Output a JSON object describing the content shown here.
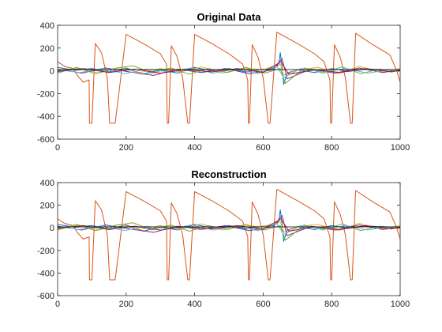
{
  "chart_data": [
    {
      "type": "line",
      "title": "Original Data",
      "xlabel": "",
      "ylabel": "",
      "xlim": [
        0,
        1000
      ],
      "ylim": [
        -600,
        400
      ],
      "xticks": [
        0,
        200,
        400,
        600,
        800,
        1000
      ],
      "yticks": [
        400,
        200,
        0,
        -200,
        -400,
        -600
      ],
      "grid": false,
      "legend": "none",
      "series": [
        {
          "color": "#D95319",
          "x": [
            0,
            20,
            45,
            60,
            75,
            92,
            93,
            100,
            110,
            128,
            145,
            152,
            168,
            200,
            250,
            300,
            318,
            320,
            324,
            332,
            348,
            365,
            380,
            385,
            400,
            450,
            500,
            540,
            555,
            557,
            560,
            568,
            585,
            600,
            615,
            620,
            640,
            700,
            750,
            778,
            795,
            797,
            800,
            808,
            825,
            840,
            855,
            860,
            870,
            920,
            970,
            990,
            1000
          ],
          "y": [
            80,
            40,
            20,
            -50,
            -100,
            -80,
            -460,
            -460,
            240,
            160,
            -60,
            -460,
            -460,
            320,
            240,
            150,
            60,
            -460,
            -460,
            220,
            130,
            -60,
            -460,
            -460,
            320,
            240,
            150,
            60,
            -80,
            -460,
            -460,
            230,
            120,
            -60,
            -460,
            -460,
            340,
            240,
            150,
            80,
            -80,
            -460,
            -460,
            230,
            120,
            -60,
            -460,
            -460,
            330,
            230,
            140,
            0,
            -100
          ]
        },
        {
          "color": "#0072BD",
          "x": [
            0,
            50,
            100,
            150,
            200,
            250,
            300,
            350,
            400,
            450,
            500,
            550,
            600,
            630,
            645,
            650,
            655,
            660,
            670,
            700,
            750,
            800,
            850,
            900,
            950,
            1000
          ],
          "y": [
            30,
            5,
            20,
            -10,
            25,
            -30,
            10,
            -20,
            30,
            0,
            20,
            -10,
            15,
            20,
            50,
            160,
            40,
            -120,
            -20,
            10,
            -15,
            20,
            -5,
            15,
            10,
            5
          ]
        },
        {
          "color": "#EDB120",
          "x": [
            0,
            60,
            120,
            180,
            240,
            300,
            360,
            420,
            480,
            540,
            600,
            650,
            660,
            700,
            760,
            820,
            880,
            940,
            1000
          ],
          "y": [
            -10,
            25,
            -20,
            30,
            -15,
            20,
            -10,
            35,
            -20,
            20,
            10,
            60,
            -40,
            10,
            30,
            -25,
            40,
            -10,
            20
          ]
        },
        {
          "color": "#7E2F8E",
          "x": [
            0,
            70,
            140,
            210,
            280,
            350,
            420,
            490,
            560,
            630,
            655,
            670,
            740,
            810,
            880,
            950,
            1000
          ],
          "y": [
            15,
            -20,
            25,
            -10,
            -40,
            15,
            -15,
            20,
            -25,
            10,
            110,
            -70,
            15,
            -20,
            25,
            -15,
            10
          ]
        },
        {
          "color": "#77AC30",
          "x": [
            0,
            55,
            110,
            165,
            220,
            275,
            330,
            385,
            440,
            495,
            550,
            605,
            650,
            665,
            720,
            775,
            830,
            885,
            940,
            1000
          ],
          "y": [
            -20,
            30,
            -25,
            20,
            45,
            -20,
            25,
            -30,
            20,
            -15,
            30,
            -20,
            20,
            -110,
            25,
            -20,
            35,
            -25,
            15,
            -5
          ]
        },
        {
          "color": "#4DBEEE",
          "x": [
            0,
            65,
            130,
            195,
            260,
            325,
            390,
            455,
            520,
            585,
            640,
            660,
            710,
            775,
            840,
            905,
            970,
            1000
          ],
          "y": [
            10,
            -15,
            20,
            -25,
            15,
            -10,
            25,
            -20,
            15,
            -25,
            40,
            -60,
            20,
            -10,
            20,
            -20,
            10,
            0
          ]
        },
        {
          "color": "#A2142F",
          "x": [
            0,
            75,
            150,
            225,
            300,
            375,
            450,
            525,
            600,
            652,
            675,
            750,
            825,
            900,
            975,
            1000
          ],
          "y": [
            -5,
            20,
            -15,
            15,
            -20,
            10,
            -10,
            20,
            -15,
            80,
            -30,
            10,
            -15,
            20,
            -10,
            5
          ]
        }
      ]
    },
    {
      "type": "line",
      "title": "Reconstruction",
      "xlabel": "",
      "ylabel": "",
      "xlim": [
        0,
        1000
      ],
      "ylim": [
        -600,
        400
      ],
      "xticks": [
        0,
        200,
        400,
        600,
        800,
        1000
      ],
      "yticks": [
        400,
        200,
        0,
        -200,
        -400,
        -600
      ],
      "grid": false,
      "legend": "none",
      "series": [
        {
          "color": "#D95319",
          "x": [
            0,
            20,
            45,
            60,
            75,
            92,
            93,
            100,
            110,
            128,
            145,
            152,
            168,
            200,
            250,
            300,
            318,
            320,
            324,
            332,
            348,
            365,
            380,
            385,
            400,
            450,
            500,
            540,
            555,
            557,
            560,
            568,
            585,
            600,
            615,
            620,
            640,
            700,
            750,
            778,
            795,
            797,
            800,
            808,
            825,
            840,
            855,
            860,
            870,
            920,
            970,
            990,
            1000
          ],
          "y": [
            80,
            40,
            20,
            -50,
            -100,
            -80,
            -460,
            -460,
            240,
            160,
            -60,
            -460,
            -460,
            320,
            240,
            150,
            60,
            -460,
            -460,
            220,
            130,
            -60,
            -460,
            -460,
            320,
            240,
            150,
            60,
            -80,
            -460,
            -460,
            230,
            120,
            -60,
            -460,
            -460,
            340,
            240,
            150,
            80,
            -80,
            -460,
            -460,
            230,
            120,
            -60,
            -460,
            -460,
            330,
            230,
            140,
            0,
            -100
          ]
        },
        {
          "color": "#0072BD",
          "x": [
            0,
            50,
            100,
            150,
            200,
            250,
            300,
            350,
            400,
            450,
            500,
            550,
            600,
            630,
            645,
            650,
            655,
            660,
            670,
            700,
            750,
            800,
            850,
            900,
            950,
            1000
          ],
          "y": [
            30,
            5,
            20,
            -10,
            25,
            -30,
            10,
            -20,
            30,
            0,
            20,
            -10,
            15,
            20,
            50,
            160,
            40,
            -120,
            -20,
            10,
            -15,
            20,
            -5,
            15,
            10,
            5
          ]
        },
        {
          "color": "#EDB120",
          "x": [
            0,
            60,
            120,
            180,
            240,
            300,
            360,
            420,
            480,
            540,
            600,
            650,
            660,
            700,
            760,
            820,
            880,
            940,
            1000
          ],
          "y": [
            -10,
            25,
            -20,
            30,
            -15,
            20,
            -10,
            35,
            -20,
            20,
            10,
            60,
            -40,
            10,
            30,
            -25,
            40,
            -10,
            20
          ]
        },
        {
          "color": "#7E2F8E",
          "x": [
            0,
            70,
            140,
            210,
            280,
            350,
            420,
            490,
            560,
            630,
            655,
            670,
            740,
            810,
            880,
            950,
            1000
          ],
          "y": [
            15,
            -20,
            25,
            -10,
            -40,
            15,
            -15,
            20,
            -25,
            10,
            110,
            -70,
            15,
            -20,
            25,
            -15,
            10
          ]
        },
        {
          "color": "#77AC30",
          "x": [
            0,
            55,
            110,
            165,
            220,
            275,
            330,
            385,
            440,
            495,
            550,
            605,
            650,
            665,
            720,
            775,
            830,
            885,
            940,
            1000
          ],
          "y": [
            -20,
            30,
            -25,
            20,
            45,
            -20,
            25,
            -30,
            20,
            -15,
            30,
            -20,
            20,
            -110,
            25,
            -20,
            35,
            -25,
            15,
            -5
          ]
        },
        {
          "color": "#4DBEEE",
          "x": [
            0,
            65,
            130,
            195,
            260,
            325,
            390,
            455,
            520,
            585,
            640,
            660,
            710,
            775,
            840,
            905,
            970,
            1000
          ],
          "y": [
            10,
            -15,
            20,
            -25,
            15,
            -10,
            25,
            -20,
            15,
            -25,
            40,
            -60,
            20,
            -10,
            20,
            -20,
            10,
            0
          ]
        },
        {
          "color": "#A2142F",
          "x": [
            0,
            75,
            150,
            225,
            300,
            375,
            450,
            525,
            600,
            652,
            675,
            750,
            825,
            900,
            975,
            1000
          ],
          "y": [
            -5,
            20,
            -15,
            15,
            -20,
            10,
            -10,
            20,
            -15,
            80,
            -30,
            10,
            -15,
            20,
            -10,
            5
          ]
        }
      ]
    }
  ]
}
